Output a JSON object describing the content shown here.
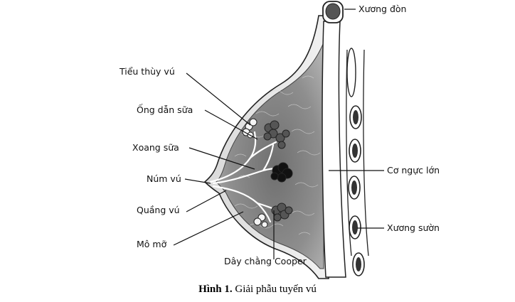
{
  "labels": {
    "lobule": "Tiểu thùy vú",
    "milk_duct": "Ống dẫn sữa",
    "lactiferous_sinus": "Xoang sữa",
    "nipple": "Núm vú",
    "areola": "Quầng vú",
    "fat": "Mô mỡ",
    "cooper": "Dây chằng Cooper",
    "clavicle": "Xương đòn",
    "pectoral": "Cơ ngực lớn",
    "rib": "Xương sườn"
  },
  "caption": {
    "number": "Hình 1.",
    "text": "Giải phẫu tuyến vú"
  }
}
